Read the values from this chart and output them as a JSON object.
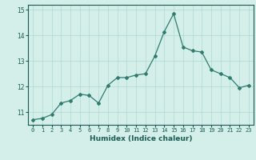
{
  "x": [
    0,
    1,
    2,
    3,
    4,
    5,
    6,
    7,
    8,
    9,
    10,
    11,
    12,
    13,
    14,
    15,
    16,
    17,
    18,
    19,
    20,
    21,
    22,
    23
  ],
  "y": [
    10.7,
    10.75,
    10.9,
    11.35,
    11.45,
    11.7,
    11.65,
    11.35,
    12.05,
    12.35,
    12.35,
    12.45,
    12.5,
    13.2,
    14.15,
    14.85,
    13.55,
    13.4,
    13.35,
    12.65,
    12.5,
    12.35,
    11.95,
    12.05
  ],
  "line_color": "#2e7d6e",
  "marker": "D",
  "marker_size": 2.0,
  "line_width": 0.9,
  "bg_color": "#d4eeea",
  "grid_color": "#b0d8d2",
  "tick_color": "#1a5c52",
  "xlabel": "Humidex (Indice chaleur)",
  "xlabel_fontsize": 6.5,
  "ylim": [
    10.5,
    15.2
  ],
  "yticks": [
    11,
    12,
    13,
    14,
    15
  ],
  "xtick_labels": [
    "0",
    "1",
    "2",
    "3",
    "4",
    "5",
    "6",
    "7",
    "8",
    "9",
    "10",
    "11",
    "12",
    "13",
    "14",
    "15",
    "16",
    "17",
    "18",
    "19",
    "20",
    "21",
    "22",
    "23"
  ],
  "xtick_fontsize": 5.0,
  "ytick_fontsize": 5.5
}
